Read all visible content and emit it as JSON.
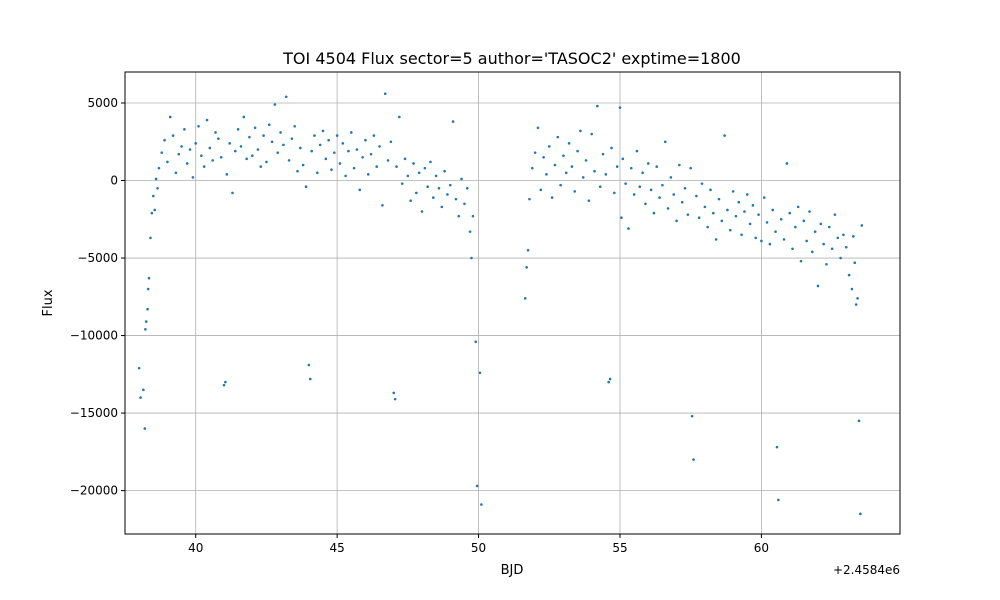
{
  "chart_data": {
    "type": "scatter",
    "title": "TOI 4504 Flux sector=5 author='TASOC2' exptime=1800",
    "xlabel": "BJD",
    "ylabel": "Flux",
    "x_offset_label": "+2.4584e6",
    "xlim": [
      37.5,
      64.9
    ],
    "ylim": [
      -22800,
      7000
    ],
    "xticks": [
      40,
      45,
      50,
      55,
      60
    ],
    "xtick_labels": [
      "40",
      "45",
      "50",
      "55",
      "60"
    ],
    "yticks": [
      5000,
      0,
      -5000,
      -10000,
      -15000,
      -20000
    ],
    "ytick_labels": [
      "5000",
      "0",
      "−5000",
      "−10000",
      "−15000",
      "−20000"
    ],
    "grid": true,
    "marker_color": "#1f77b4",
    "series": [
      {
        "points": [
          [
            38.0,
            -12100
          ],
          [
            38.05,
            -14000
          ],
          [
            38.15,
            -13500
          ],
          [
            38.2,
            -16000
          ],
          [
            38.22,
            -9600
          ],
          [
            38.25,
            -9100
          ],
          [
            38.3,
            -8300
          ],
          [
            38.32,
            -7000
          ],
          [
            38.35,
            -6300
          ],
          [
            38.4,
            -3700
          ],
          [
            38.45,
            -2100
          ],
          [
            38.5,
            -1000
          ],
          [
            38.55,
            -1900
          ],
          [
            38.6,
            100
          ],
          [
            38.65,
            -500
          ],
          [
            38.7,
            800
          ],
          [
            38.8,
            1800
          ],
          [
            38.9,
            2600
          ],
          [
            39.0,
            1200
          ],
          [
            39.1,
            4100
          ],
          [
            39.2,
            2900
          ],
          [
            39.3,
            500
          ],
          [
            39.4,
            1700
          ],
          [
            39.5,
            2200
          ],
          [
            39.6,
            3300
          ],
          [
            39.7,
            1100
          ],
          [
            39.8,
            2000
          ],
          [
            39.9,
            200
          ],
          [
            40.0,
            2400
          ],
          [
            40.1,
            3500
          ],
          [
            40.2,
            1600
          ],
          [
            40.3,
            900
          ],
          [
            40.4,
            3900
          ],
          [
            40.5,
            2100
          ],
          [
            40.6,
            1300
          ],
          [
            40.7,
            3100
          ],
          [
            40.8,
            2700
          ],
          [
            40.9,
            1500
          ],
          [
            41.0,
            -13200
          ],
          [
            41.05,
            -13000
          ],
          [
            41.1,
            400
          ],
          [
            41.2,
            2400
          ],
          [
            41.3,
            -800
          ],
          [
            41.4,
            1900
          ],
          [
            41.5,
            3300
          ],
          [
            41.6,
            2200
          ],
          [
            41.7,
            4100
          ],
          [
            41.8,
            1400
          ],
          [
            41.9,
            2800
          ],
          [
            42.0,
            1600
          ],
          [
            42.1,
            3400
          ],
          [
            42.2,
            2000
          ],
          [
            42.3,
            900
          ],
          [
            42.4,
            2900
          ],
          [
            42.5,
            1200
          ],
          [
            42.6,
            3600
          ],
          [
            42.7,
            2500
          ],
          [
            42.8,
            4900
          ],
          [
            42.9,
            1800
          ],
          [
            43.0,
            3100
          ],
          [
            43.1,
            2300
          ],
          [
            43.2,
            5400
          ],
          [
            43.3,
            1300
          ],
          [
            43.4,
            2700
          ],
          [
            43.5,
            3500
          ],
          [
            43.6,
            600
          ],
          [
            43.7,
            2100
          ],
          [
            43.8,
            1000
          ],
          [
            43.9,
            -400
          ],
          [
            44.0,
            -11900
          ],
          [
            44.05,
            -12800
          ],
          [
            44.1,
            1900
          ],
          [
            44.2,
            2900
          ],
          [
            44.3,
            500
          ],
          [
            44.4,
            2300
          ],
          [
            44.5,
            3200
          ],
          [
            44.6,
            1400
          ],
          [
            44.7,
            2600
          ],
          [
            44.8,
            700
          ],
          [
            44.9,
            1800
          ],
          [
            45.0,
            2900
          ],
          [
            45.1,
            1100
          ],
          [
            45.2,
            2400
          ],
          [
            45.3,
            300
          ],
          [
            45.4,
            1900
          ],
          [
            45.5,
            3100
          ],
          [
            45.6,
            800
          ],
          [
            45.7,
            2000
          ],
          [
            45.8,
            -600
          ],
          [
            45.9,
            1500
          ],
          [
            46.0,
            2600
          ],
          [
            46.1,
            400
          ],
          [
            46.2,
            1700
          ],
          [
            46.3,
            2900
          ],
          [
            46.4,
            900
          ],
          [
            46.5,
            2200
          ],
          [
            46.6,
            -1600
          ],
          [
            46.7,
            5600
          ],
          [
            46.8,
            1300
          ],
          [
            46.9,
            2500
          ],
          [
            47.0,
            -13700
          ],
          [
            47.05,
            -14100
          ],
          [
            47.1,
            900
          ],
          [
            47.2,
            4100
          ],
          [
            47.3,
            -200
          ],
          [
            47.4,
            1400
          ],
          [
            47.5,
            300
          ],
          [
            47.6,
            -1300
          ],
          [
            47.7,
            1100
          ],
          [
            47.8,
            -800
          ],
          [
            47.9,
            500
          ],
          [
            48.0,
            -2000
          ],
          [
            48.1,
            800
          ],
          [
            48.2,
            -400
          ],
          [
            48.3,
            1200
          ],
          [
            48.4,
            -1100
          ],
          [
            48.5,
            300
          ],
          [
            48.6,
            -500
          ],
          [
            48.7,
            -1700
          ],
          [
            48.8,
            600
          ],
          [
            48.9,
            -900
          ],
          [
            49.0,
            -300
          ],
          [
            49.1,
            3800
          ],
          [
            49.2,
            -1200
          ],
          [
            49.3,
            -2300
          ],
          [
            49.4,
            100
          ],
          [
            49.5,
            -1500
          ],
          [
            49.6,
            -500
          ],
          [
            49.7,
            -3300
          ],
          [
            49.75,
            -5000
          ],
          [
            49.8,
            -2300
          ],
          [
            49.9,
            -10400
          ],
          [
            49.95,
            -19700
          ],
          [
            50.05,
            -12400
          ],
          [
            50.1,
            -20900
          ],
          [
            51.65,
            -7600
          ],
          [
            51.7,
            -5600
          ],
          [
            51.75,
            -4500
          ],
          [
            51.8,
            -1200
          ],
          [
            51.9,
            800
          ],
          [
            52.0,
            1800
          ],
          [
            52.1,
            3400
          ],
          [
            52.2,
            -600
          ],
          [
            52.3,
            1500
          ],
          [
            52.4,
            400
          ],
          [
            52.5,
            2200
          ],
          [
            52.6,
            -1100
          ],
          [
            52.7,
            1000
          ],
          [
            52.8,
            2800
          ],
          [
            52.9,
            -300
          ],
          [
            53.0,
            1600
          ],
          [
            53.1,
            500
          ],
          [
            53.2,
            2400
          ],
          [
            53.3,
            900
          ],
          [
            53.4,
            -700
          ],
          [
            53.5,
            1900
          ],
          [
            53.6,
            3200
          ],
          [
            53.7,
            200
          ],
          [
            53.8,
            1300
          ],
          [
            53.9,
            -1300
          ],
          [
            54.0,
            3000
          ],
          [
            54.1,
            600
          ],
          [
            54.2,
            4800
          ],
          [
            54.3,
            -400
          ],
          [
            54.4,
            1700
          ],
          [
            54.5,
            400
          ],
          [
            54.6,
            -13000
          ],
          [
            54.65,
            -12800
          ],
          [
            54.7,
            2100
          ],
          [
            54.8,
            -800
          ],
          [
            54.9,
            900
          ],
          [
            55.0,
            4700
          ],
          [
            55.05,
            -2400
          ],
          [
            55.1,
            1400
          ],
          [
            55.2,
            -200
          ],
          [
            55.3,
            -3100
          ],
          [
            55.4,
            800
          ],
          [
            55.5,
            -900
          ],
          [
            55.6,
            1900
          ],
          [
            55.7,
            -400
          ],
          [
            55.8,
            500
          ],
          [
            55.9,
            -1500
          ],
          [
            56.0,
            1100
          ],
          [
            56.1,
            -600
          ],
          [
            56.2,
            -2100
          ],
          [
            56.3,
            900
          ],
          [
            56.4,
            -1100
          ],
          [
            56.5,
            -300
          ],
          [
            56.6,
            2500
          ],
          [
            56.7,
            -1800
          ],
          [
            56.8,
            200
          ],
          [
            56.9,
            -900
          ],
          [
            57.0,
            -2600
          ],
          [
            57.1,
            1000
          ],
          [
            57.2,
            -1400
          ],
          [
            57.3,
            -500
          ],
          [
            57.4,
            -2200
          ],
          [
            57.5,
            800
          ],
          [
            57.55,
            -15200
          ],
          [
            57.6,
            -18000
          ],
          [
            57.7,
            -1000
          ],
          [
            57.8,
            -2400
          ],
          [
            57.9,
            -200
          ],
          [
            58.0,
            -1700
          ],
          [
            58.1,
            -3000
          ],
          [
            58.2,
            -600
          ],
          [
            58.3,
            -2100
          ],
          [
            58.4,
            -3800
          ],
          [
            58.5,
            -1200
          ],
          [
            58.6,
            -2600
          ],
          [
            58.7,
            2900
          ],
          [
            58.8,
            -1900
          ],
          [
            58.9,
            -3200
          ],
          [
            59.0,
            -700
          ],
          [
            59.1,
            -2300
          ],
          [
            59.2,
            -1400
          ],
          [
            59.3,
            -3500
          ],
          [
            59.4,
            -2000
          ],
          [
            59.5,
            -900
          ],
          [
            59.6,
            -2800
          ],
          [
            59.7,
            -1600
          ],
          [
            59.8,
            -3700
          ],
          [
            59.9,
            -2200
          ],
          [
            60.0,
            -3900
          ],
          [
            60.1,
            -1100
          ],
          [
            60.2,
            -2700
          ],
          [
            60.3,
            -4100
          ],
          [
            60.4,
            -1900
          ],
          [
            60.5,
            -3300
          ],
          [
            60.55,
            -17200
          ],
          [
            60.6,
            -20600
          ],
          [
            60.7,
            -2500
          ],
          [
            60.8,
            -3800
          ],
          [
            60.9,
            1100
          ],
          [
            61.0,
            -2100
          ],
          [
            61.1,
            -4400
          ],
          [
            61.2,
            -3000
          ],
          [
            61.3,
            -1700
          ],
          [
            61.4,
            -5200
          ],
          [
            61.5,
            -2600
          ],
          [
            61.6,
            -3900
          ],
          [
            61.7,
            -2000
          ],
          [
            61.8,
            -4600
          ],
          [
            61.9,
            -3300
          ],
          [
            62.0,
            -6800
          ],
          [
            62.1,
            -2800
          ],
          [
            62.2,
            -4100
          ],
          [
            62.3,
            -5400
          ],
          [
            62.4,
            -3000
          ],
          [
            62.5,
            -4400
          ],
          [
            62.6,
            -2200
          ],
          [
            62.7,
            -3700
          ],
          [
            62.8,
            -5000
          ],
          [
            62.9,
            -3500
          ],
          [
            63.0,
            -4300
          ],
          [
            63.1,
            -6100
          ],
          [
            63.2,
            -7000
          ],
          [
            63.25,
            -3600
          ],
          [
            63.3,
            -5300
          ],
          [
            63.35,
            -8000
          ],
          [
            63.4,
            -7600
          ],
          [
            63.45,
            -15500
          ],
          [
            63.5,
            -21500
          ],
          [
            63.55,
            -2900
          ]
        ]
      }
    ]
  }
}
